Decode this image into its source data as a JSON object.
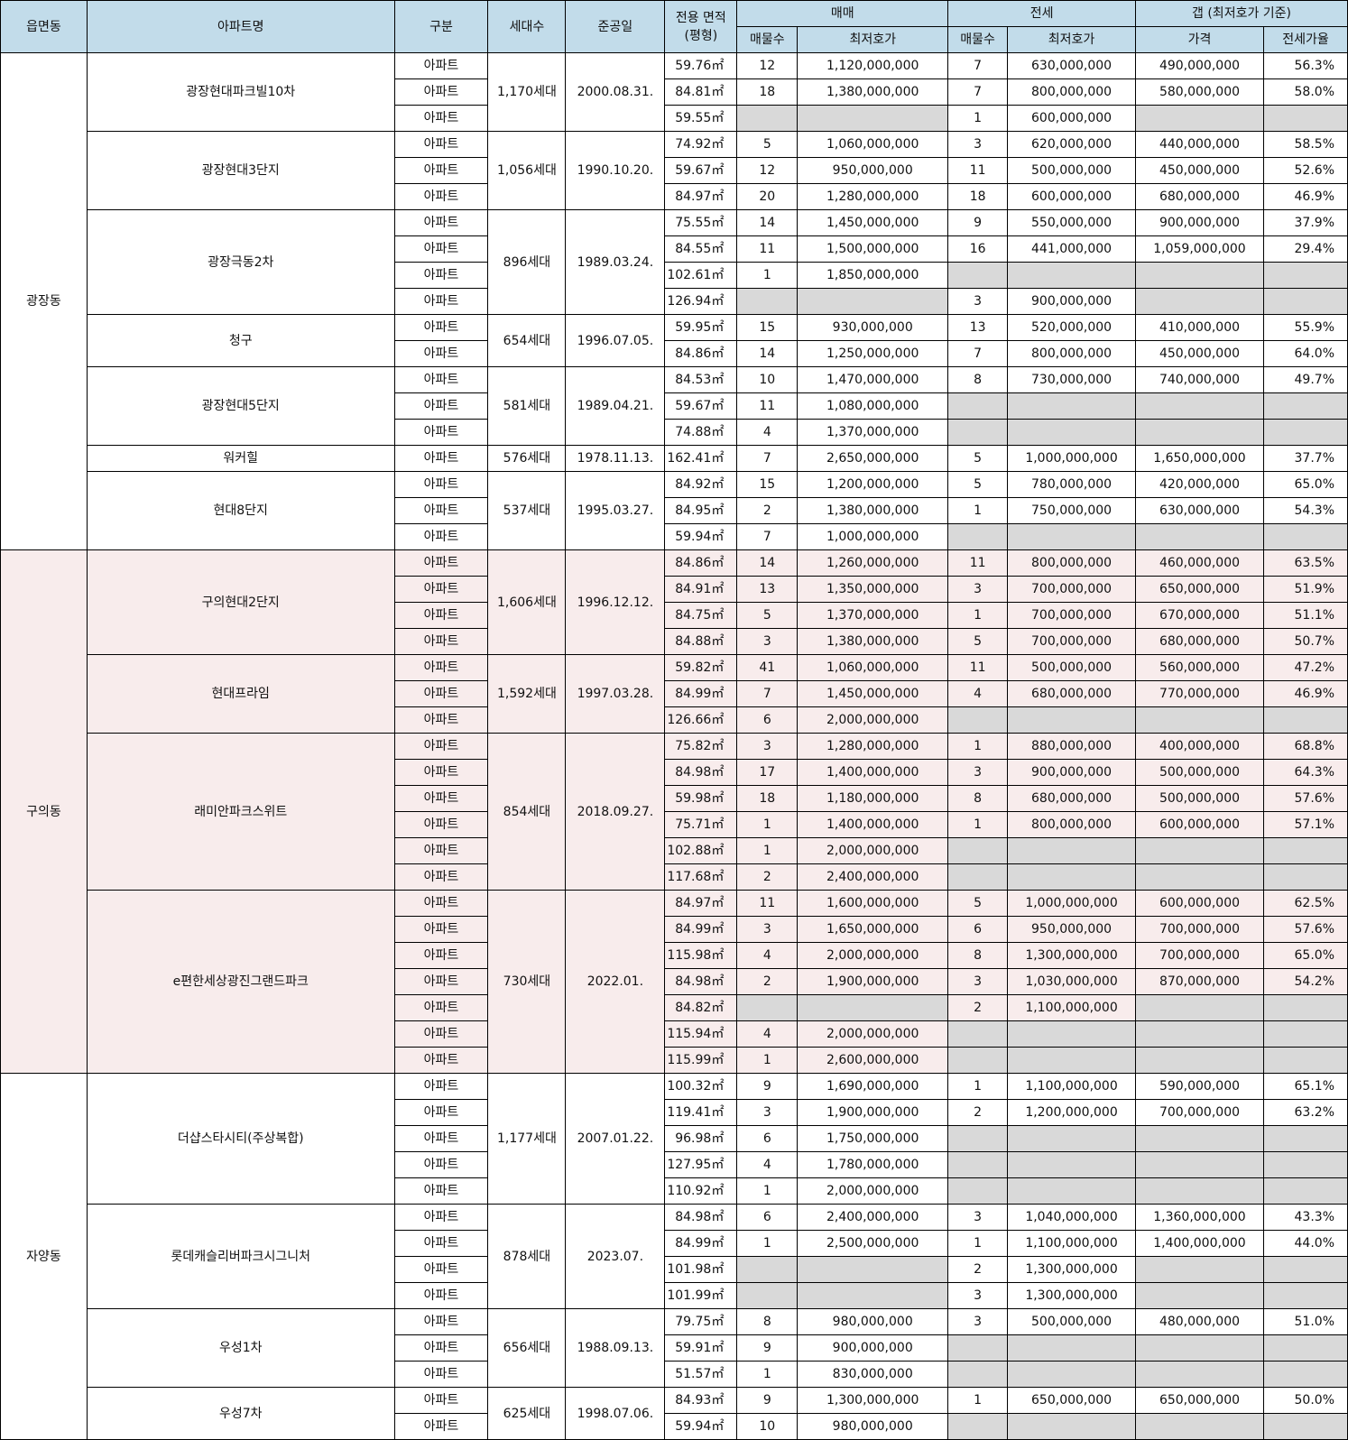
{
  "headers": {
    "region": "읍면동",
    "apt": "아파트명",
    "type": "구분",
    "households": "세대수",
    "completion": "준공일",
    "area_line1": "전용 면적",
    "area_line2": "(평형)",
    "sale": "매매",
    "jeonse": "전세",
    "gap": "갭 (최저호가 기준)",
    "count": "매물수",
    "min_price": "최저호가",
    "gap_price": "가격",
    "ratio": "전세가율"
  },
  "regions": [
    {
      "name": "광장동",
      "highlight": false,
      "apartments": [
        {
          "name": "광장현대파크빌10차",
          "households": "1,170세대",
          "completion": "2000.08.31.",
          "rows": [
            [
              "아파트",
              "59.76㎡",
              "12",
              "1,120,000,000",
              "7",
              "630,000,000",
              "490,000,000",
              "56.3%"
            ],
            [
              "아파트",
              "84.81㎡",
              "18",
              "1,380,000,000",
              "7",
              "800,000,000",
              "580,000,000",
              "58.0%"
            ],
            [
              "아파트",
              "59.55㎡",
              "",
              "",
              "1",
              "600,000,000",
              "",
              ""
            ]
          ]
        },
        {
          "name": "광장현대3단지",
          "households": "1,056세대",
          "completion": "1990.10.20.",
          "rows": [
            [
              "아파트",
              "74.92㎡",
              "5",
              "1,060,000,000",
              "3",
              "620,000,000",
              "440,000,000",
              "58.5%"
            ],
            [
              "아파트",
              "59.67㎡",
              "12",
              "950,000,000",
              "11",
              "500,000,000",
              "450,000,000",
              "52.6%"
            ],
            [
              "아파트",
              "84.97㎡",
              "20",
              "1,280,000,000",
              "18",
              "600,000,000",
              "680,000,000",
              "46.9%"
            ]
          ]
        },
        {
          "name": "광장극동2차",
          "households": "896세대",
          "completion": "1989.03.24.",
          "rows": [
            [
              "아파트",
              "75.55㎡",
              "14",
              "1,450,000,000",
              "9",
              "550,000,000",
              "900,000,000",
              "37.9%"
            ],
            [
              "아파트",
              "84.55㎡",
              "11",
              "1,500,000,000",
              "16",
              "441,000,000",
              "1,059,000,000",
              "29.4%"
            ],
            [
              "아파트",
              "102.61㎡",
              "1",
              "1,850,000,000",
              "",
              "",
              "",
              ""
            ],
            [
              "아파트",
              "126.94㎡",
              "",
              "",
              "3",
              "900,000,000",
              "",
              ""
            ]
          ]
        },
        {
          "name": "청구",
          "households": "654세대",
          "completion": "1996.07.05.",
          "rows": [
            [
              "아파트",
              "59.95㎡",
              "15",
              "930,000,000",
              "13",
              "520,000,000",
              "410,000,000",
              "55.9%"
            ],
            [
              "아파트",
              "84.86㎡",
              "14",
              "1,250,000,000",
              "7",
              "800,000,000",
              "450,000,000",
              "64.0%"
            ]
          ]
        },
        {
          "name": "광장현대5단지",
          "households": "581세대",
          "completion": "1989.04.21.",
          "rows": [
            [
              "아파트",
              "84.53㎡",
              "10",
              "1,470,000,000",
              "8",
              "730,000,000",
              "740,000,000",
              "49.7%"
            ],
            [
              "아파트",
              "59.67㎡",
              "11",
              "1,080,000,000",
              "",
              "",
              "",
              ""
            ],
            [
              "아파트",
              "74.88㎡",
              "4",
              "1,370,000,000",
              "",
              "",
              "",
              ""
            ]
          ]
        },
        {
          "name": "워커힐",
          "households": "576세대",
          "completion": "1978.11.13.",
          "rows": [
            [
              "아파트",
              "162.41㎡",
              "7",
              "2,650,000,000",
              "5",
              "1,000,000,000",
              "1,650,000,000",
              "37.7%"
            ]
          ]
        },
        {
          "name": "현대8단지",
          "households": "537세대",
          "completion": "1995.03.27.",
          "rows": [
            [
              "아파트",
              "84.92㎡",
              "15",
              "1,200,000,000",
              "5",
              "780,000,000",
              "420,000,000",
              "65.0%"
            ],
            [
              "아파트",
              "84.95㎡",
              "2",
              "1,380,000,000",
              "1",
              "750,000,000",
              "630,000,000",
              "54.3%"
            ],
            [
              "아파트",
              "59.94㎡",
              "7",
              "1,000,000,000",
              "",
              "",
              "",
              ""
            ]
          ]
        }
      ]
    },
    {
      "name": "구의동",
      "highlight": true,
      "apartments": [
        {
          "name": "구의현대2단지",
          "households": "1,606세대",
          "completion": "1996.12.12.",
          "rows": [
            [
              "아파트",
              "84.86㎡",
              "14",
              "1,260,000,000",
              "11",
              "800,000,000",
              "460,000,000",
              "63.5%"
            ],
            [
              "아파트",
              "84.91㎡",
              "13",
              "1,350,000,000",
              "3",
              "700,000,000",
              "650,000,000",
              "51.9%"
            ],
            [
              "아파트",
              "84.75㎡",
              "5",
              "1,370,000,000",
              "1",
              "700,000,000",
              "670,000,000",
              "51.1%"
            ],
            [
              "아파트",
              "84.88㎡",
              "3",
              "1,380,000,000",
              "5",
              "700,000,000",
              "680,000,000",
              "50.7%"
            ]
          ]
        },
        {
          "name": "현대프라임",
          "households": "1,592세대",
          "completion": "1997.03.28.",
          "rows": [
            [
              "아파트",
              "59.82㎡",
              "41",
              "1,060,000,000",
              "11",
              "500,000,000",
              "560,000,000",
              "47.2%"
            ],
            [
              "아파트",
              "84.99㎡",
              "7",
              "1,450,000,000",
              "4",
              "680,000,000",
              "770,000,000",
              "46.9%"
            ],
            [
              "아파트",
              "126.66㎡",
              "6",
              "2,000,000,000",
              "",
              "",
              "",
              ""
            ]
          ]
        },
        {
          "name": "래미안파크스위트",
          "households": "854세대",
          "completion": "2018.09.27.",
          "rows": [
            [
              "아파트",
              "75.82㎡",
              "3",
              "1,280,000,000",
              "1",
              "880,000,000",
              "400,000,000",
              "68.8%"
            ],
            [
              "아파트",
              "84.98㎡",
              "17",
              "1,400,000,000",
              "3",
              "900,000,000",
              "500,000,000",
              "64.3%"
            ],
            [
              "아파트",
              "59.98㎡",
              "18",
              "1,180,000,000",
              "8",
              "680,000,000",
              "500,000,000",
              "57.6%"
            ],
            [
              "아파트",
              "75.71㎡",
              "1",
              "1,400,000,000",
              "1",
              "800,000,000",
              "600,000,000",
              "57.1%"
            ],
            [
              "아파트",
              "102.88㎡",
              "1",
              "2,000,000,000",
              "",
              "",
              "",
              ""
            ],
            [
              "아파트",
              "117.68㎡",
              "2",
              "2,400,000,000",
              "",
              "",
              "",
              ""
            ]
          ]
        },
        {
          "name": "e편한세상광진그랜드파크",
          "households": "730세대",
          "completion": "2022.01.",
          "rows": [
            [
              "아파트",
              "84.97㎡",
              "11",
              "1,600,000,000",
              "5",
              "1,000,000,000",
              "600,000,000",
              "62.5%"
            ],
            [
              "아파트",
              "84.99㎡",
              "3",
              "1,650,000,000",
              "6",
              "950,000,000",
              "700,000,000",
              "57.6%"
            ],
            [
              "아파트",
              "115.98㎡",
              "4",
              "2,000,000,000",
              "8",
              "1,300,000,000",
              "700,000,000",
              "65.0%"
            ],
            [
              "아파트",
              "84.98㎡",
              "2",
              "1,900,000,000",
              "3",
              "1,030,000,000",
              "870,000,000",
              "54.2%"
            ],
            [
              "아파트",
              "84.82㎡",
              "",
              "",
              "2",
              "1,100,000,000",
              "",
              ""
            ],
            [
              "아파트",
              "115.94㎡",
              "4",
              "2,000,000,000",
              "",
              "",
              "",
              ""
            ],
            [
              "아파트",
              "115.99㎡",
              "1",
              "2,600,000,000",
              "",
              "",
              "",
              ""
            ]
          ]
        }
      ]
    },
    {
      "name": "자양동",
      "highlight": false,
      "apartments": [
        {
          "name": "더샵스타시티(주상복합)",
          "households": "1,177세대",
          "completion": "2007.01.22.",
          "rows": [
            [
              "아파트",
              "100.32㎡",
              "9",
              "1,690,000,000",
              "1",
              "1,100,000,000",
              "590,000,000",
              "65.1%"
            ],
            [
              "아파트",
              "119.41㎡",
              "3",
              "1,900,000,000",
              "2",
              "1,200,000,000",
              "700,000,000",
              "63.2%"
            ],
            [
              "아파트",
              "96.98㎡",
              "6",
              "1,750,000,000",
              "",
              "",
              "",
              ""
            ],
            [
              "아파트",
              "127.95㎡",
              "4",
              "1,780,000,000",
              "",
              "",
              "",
              ""
            ],
            [
              "아파트",
              "110.92㎡",
              "1",
              "2,000,000,000",
              "",
              "",
              "",
              ""
            ]
          ]
        },
        {
          "name": "롯데캐슬리버파크시그니처",
          "households": "878세대",
          "completion": "2023.07.",
          "rows": [
            [
              "아파트",
              "84.98㎡",
              "6",
              "2,400,000,000",
              "3",
              "1,040,000,000",
              "1,360,000,000",
              "43.3%"
            ],
            [
              "아파트",
              "84.99㎡",
              "1",
              "2,500,000,000",
              "1",
              "1,100,000,000",
              "1,400,000,000",
              "44.0%"
            ],
            [
              "아파트",
              "101.98㎡",
              "",
              "",
              "2",
              "1,300,000,000",
              "",
              ""
            ],
            [
              "아파트",
              "101.99㎡",
              "",
              "",
              "3",
              "1,300,000,000",
              "",
              ""
            ]
          ]
        },
        {
          "name": "우성1차",
          "households": "656세대",
          "completion": "1988.09.13.",
          "rows": [
            [
              "아파트",
              "79.75㎡",
              "8",
              "980,000,000",
              "3",
              "500,000,000",
              "480,000,000",
              "51.0%"
            ],
            [
              "아파트",
              "59.91㎡",
              "9",
              "900,000,000",
              "",
              "",
              "",
              ""
            ],
            [
              "아파트",
              "51.57㎡",
              "1",
              "830,000,000",
              "",
              "",
              "",
              ""
            ]
          ]
        },
        {
          "name": "우성7차",
          "households": "625세대",
          "completion": "1998.07.06.",
          "rows": [
            [
              "아파트",
              "84.93㎡",
              "9",
              "1,300,000,000",
              "1",
              "650,000,000",
              "650,000,000",
              "50.0%"
            ],
            [
              "아파트",
              "59.94㎡",
              "10",
              "980,000,000",
              "",
              "",
              "",
              ""
            ]
          ]
        }
      ]
    }
  ]
}
